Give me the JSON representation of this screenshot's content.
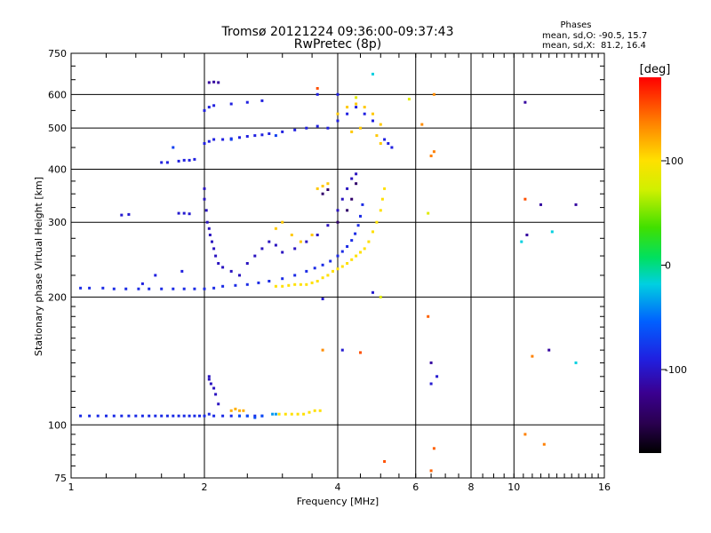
{
  "chart_data": {
    "type": "scatter",
    "title": "Tromsø 20121224 09:36:00-09:37:43",
    "subtitle": "RwPretec (8p)",
    "xlabel": "Frequency [MHz]",
    "ylabel": "Stationary phase Virtual Height [km]",
    "x_scale": "log2",
    "y_scale": "log",
    "xlim": [
      1,
      16
    ],
    "ylim": [
      75,
      750
    ],
    "x_ticks": [
      1,
      2,
      4,
      6,
      8,
      10,
      16
    ],
    "x_tick_labels": [
      "1",
      "2",
      "4",
      "6",
      "8",
      "10",
      "16"
    ],
    "y_ticks": [
      75,
      100,
      200,
      300,
      400,
      500,
      600,
      750
    ],
    "y_tick_labels": [
      "75",
      "100",
      "200",
      "300",
      "400",
      "500",
      "600",
      "750"
    ],
    "grid": true,
    "phases_info": {
      "heading": "Phases",
      "line1": "mean, sd,O: -90.5, 15.7",
      "line2": "mean, sd,X:  81.2, 16.4"
    },
    "colorbar": {
      "label": "[deg]",
      "range": [
        -180,
        180
      ],
      "ticks": [
        100,
        0,
        -100
      ],
      "tick_labels": [
        "100",
        "0",
        "-100"
      ]
    },
    "series": [
      {
        "phase": -95,
        "points": [
          [
            1.05,
            210
          ],
          [
            1.1,
            210
          ],
          [
            1.18,
            210
          ],
          [
            1.25,
            209
          ],
          [
            1.33,
            209
          ],
          [
            1.42,
            209
          ],
          [
            1.5,
            209
          ],
          [
            1.6,
            209
          ],
          [
            1.7,
            209
          ],
          [
            1.8,
            209
          ],
          [
            1.9,
            209
          ],
          [
            2.0,
            209
          ],
          [
            2.1,
            210
          ],
          [
            2.2,
            212
          ],
          [
            2.35,
            213
          ],
          [
            2.5,
            214
          ],
          [
            2.65,
            216
          ],
          [
            2.8,
            218
          ],
          [
            3.0,
            221
          ],
          [
            3.2,
            225
          ],
          [
            3.4,
            230
          ],
          [
            3.55,
            234
          ],
          [
            3.7,
            238
          ],
          [
            3.85,
            243
          ],
          [
            4.0,
            250
          ],
          [
            4.1,
            256
          ],
          [
            4.2,
            263
          ],
          [
            4.3,
            272
          ],
          [
            4.38,
            282
          ],
          [
            4.45,
            295
          ],
          [
            4.5,
            310
          ],
          [
            4.55,
            330
          ]
        ]
      },
      {
        "phase": -95,
        "points": [
          [
            1.05,
            105
          ],
          [
            1.1,
            105
          ],
          [
            1.15,
            105
          ],
          [
            1.2,
            105
          ],
          [
            1.25,
            105
          ],
          [
            1.3,
            105
          ],
          [
            1.35,
            105
          ],
          [
            1.4,
            105
          ],
          [
            1.45,
            105
          ],
          [
            1.5,
            105
          ],
          [
            1.55,
            105
          ],
          [
            1.6,
            105
          ],
          [
            1.65,
            105
          ],
          [
            1.7,
            105
          ],
          [
            1.75,
            105
          ],
          [
            1.8,
            105
          ],
          [
            1.85,
            105
          ],
          [
            1.9,
            105
          ],
          [
            1.95,
            105
          ],
          [
            2.0,
            105
          ],
          [
            2.05,
            106
          ],
          [
            2.1,
            105
          ],
          [
            2.2,
            105
          ],
          [
            2.3,
            105
          ],
          [
            2.4,
            105
          ],
          [
            2.5,
            105
          ],
          [
            2.6,
            105
          ],
          [
            2.7,
            105
          ]
        ]
      },
      {
        "phase": -100,
        "points": [
          [
            2.0,
            460
          ],
          [
            2.05,
            465
          ],
          [
            2.1,
            470
          ],
          [
            2.2,
            470
          ],
          [
            2.3,
            472
          ],
          [
            2.4,
            475
          ],
          [
            2.5,
            478
          ],
          [
            2.6,
            480
          ],
          [
            2.7,
            482
          ],
          [
            2.8,
            485
          ],
          [
            3.0,
            490
          ],
          [
            3.2,
            495
          ],
          [
            3.4,
            500
          ],
          [
            3.6,
            505
          ],
          [
            3.8,
            500
          ],
          [
            4.0,
            520
          ],
          [
            4.2,
            540
          ],
          [
            4.4,
            560
          ],
          [
            4.6,
            540
          ],
          [
            4.8,
            520
          ]
        ]
      },
      {
        "phase": -100,
        "points": [
          [
            2.0,
            550
          ],
          [
            2.05,
            560
          ],
          [
            2.1,
            565
          ],
          [
            2.3,
            570
          ],
          [
            2.5,
            575
          ],
          [
            2.7,
            580
          ],
          [
            3.6,
            600
          ],
          [
            4.0,
            600
          ]
        ]
      },
      {
        "phase": -110,
        "points": [
          [
            2.0,
            360
          ],
          [
            2.0,
            340
          ],
          [
            2.02,
            320
          ],
          [
            2.03,
            300
          ],
          [
            2.05,
            290
          ],
          [
            2.06,
            280
          ],
          [
            2.08,
            270
          ],
          [
            2.1,
            260
          ],
          [
            2.12,
            250
          ],
          [
            2.15,
            240
          ],
          [
            2.2,
            235
          ],
          [
            2.3,
            230
          ],
          [
            2.4,
            225
          ],
          [
            2.5,
            240
          ],
          [
            2.6,
            250
          ],
          [
            2.7,
            260
          ],
          [
            2.8,
            270
          ],
          [
            2.9,
            265
          ],
          [
            3.0,
            255
          ],
          [
            3.2,
            260
          ],
          [
            3.4,
            270
          ],
          [
            3.6,
            280
          ],
          [
            3.8,
            295
          ],
          [
            4.0,
            320
          ],
          [
            4.1,
            340
          ],
          [
            4.2,
            360
          ],
          [
            4.3,
            380
          ],
          [
            4.4,
            390
          ]
        ]
      },
      {
        "phase": -110,
        "points": [
          [
            2.05,
            130
          ],
          [
            2.07,
            125
          ],
          [
            2.1,
            122
          ],
          [
            2.12,
            118
          ],
          [
            2.15,
            112
          ],
          [
            2.05,
            128
          ]
        ]
      },
      {
        "phase": -120,
        "points": [
          [
            2.05,
            640
          ],
          [
            2.1,
            642
          ],
          [
            2.15,
            640
          ]
        ]
      },
      {
        "phase": -105,
        "points": [
          [
            1.3,
            312
          ],
          [
            1.35,
            313
          ],
          [
            1.75,
            315
          ],
          [
            1.8,
            315
          ],
          [
            1.85,
            314
          ]
        ]
      },
      {
        "phase": -100,
        "points": [
          [
            1.6,
            415
          ],
          [
            1.65,
            415
          ],
          [
            1.75,
            418
          ],
          [
            1.8,
            420
          ],
          [
            1.85,
            420
          ],
          [
            1.9,
            422
          ]
        ]
      },
      {
        "phase": -100,
        "points": [
          [
            1.78,
            230
          ],
          [
            1.55,
            225
          ],
          [
            1.45,
            215
          ]
        ]
      },
      {
        "phase": -85,
        "points": [
          [
            1.7,
            450
          ],
          [
            2.3,
            470
          ],
          [
            2.9,
            480
          ]
        ]
      },
      {
        "phase": -100,
        "points": [
          [
            5.1,
            470
          ],
          [
            5.2,
            460
          ],
          [
            5.3,
            450
          ]
        ]
      },
      {
        "phase": -80,
        "points": [
          [
            2.4,
            105
          ],
          [
            2.5,
            105
          ],
          [
            2.6,
            104
          ],
          [
            2.7,
            105
          ]
        ]
      },
      {
        "phase": -45,
        "points": [
          [
            2.85,
            106
          ],
          [
            2.9,
            106
          ]
        ]
      },
      {
        "phase": 100,
        "points": [
          [
            2.95,
            106
          ],
          [
            3.05,
            106
          ],
          [
            3.15,
            106
          ],
          [
            3.25,
            106
          ],
          [
            3.35,
            106
          ],
          [
            3.45,
            107
          ],
          [
            3.55,
            108
          ],
          [
            3.65,
            108
          ]
        ]
      },
      {
        "phase": 120,
        "points": [
          [
            2.3,
            108
          ],
          [
            2.35,
            109
          ],
          [
            2.4,
            108
          ],
          [
            2.45,
            108
          ]
        ]
      },
      {
        "phase": 100,
        "points": [
          [
            2.9,
            212
          ],
          [
            3.0,
            212
          ],
          [
            3.1,
            213
          ],
          [
            3.2,
            214
          ],
          [
            3.3,
            214
          ],
          [
            3.4,
            214
          ],
          [
            3.5,
            216
          ],
          [
            3.6,
            218
          ],
          [
            3.7,
            222
          ],
          [
            3.8,
            225
          ],
          [
            3.9,
            230
          ],
          [
            4.0,
            233
          ],
          [
            4.1,
            236
          ],
          [
            4.2,
            240
          ],
          [
            4.3,
            245
          ],
          [
            4.4,
            250
          ],
          [
            4.5,
            255
          ],
          [
            4.6,
            260
          ],
          [
            4.7,
            270
          ],
          [
            4.8,
            285
          ],
          [
            4.9,
            300
          ],
          [
            5.0,
            320
          ],
          [
            5.05,
            340
          ],
          [
            5.1,
            360
          ]
        ]
      },
      {
        "phase": 110,
        "points": [
          [
            2.9,
            290
          ],
          [
            3.0,
            300
          ],
          [
            3.15,
            280
          ],
          [
            3.3,
            270
          ],
          [
            3.5,
            280
          ],
          [
            3.6,
            360
          ],
          [
            3.7,
            365
          ],
          [
            3.8,
            370
          ],
          [
            4.0,
            540
          ],
          [
            4.2,
            560
          ],
          [
            4.4,
            570
          ],
          [
            4.6,
            560
          ],
          [
            4.8,
            540
          ],
          [
            5.0,
            510
          ],
          [
            4.5,
            500
          ],
          [
            4.3,
            490
          ],
          [
            4.9,
            480
          ],
          [
            5.0,
            460
          ]
        ]
      },
      {
        "phase": 140,
        "points": [
          [
            6.5,
            430
          ],
          [
            6.6,
            440
          ],
          [
            10.6,
            95
          ],
          [
            11.0,
            145
          ],
          [
            11.7,
            90
          ]
        ]
      },
      {
        "phase": 150,
        "points": [
          [
            6.4,
            180
          ],
          [
            6.6,
            88
          ],
          [
            6.5,
            78
          ]
        ]
      },
      {
        "phase": 155,
        "points": [
          [
            3.6,
            620
          ],
          [
            4.5,
            148
          ],
          [
            5.1,
            82
          ],
          [
            10.6,
            340
          ]
        ]
      },
      {
        "phase": 135,
        "points": [
          [
            3.7,
            150
          ],
          [
            6.2,
            510
          ],
          [
            6.6,
            600
          ]
        ]
      },
      {
        "phase": -120,
        "points": [
          [
            6.5,
            140
          ],
          [
            10.6,
            575
          ],
          [
            11.5,
            330
          ],
          [
            10.7,
            280
          ],
          [
            12.0,
            150
          ],
          [
            13.8,
            330
          ]
        ]
      },
      {
        "phase": -105,
        "points": [
          [
            6.7,
            130
          ],
          [
            6.5,
            125
          ],
          [
            4.1,
            150
          ],
          [
            4.8,
            205
          ],
          [
            3.7,
            198
          ]
        ]
      },
      {
        "phase": -20,
        "points": [
          [
            4.8,
            670
          ],
          [
            12.2,
            285
          ],
          [
            13.8,
            140
          ],
          [
            10.4,
            270
          ]
        ]
      },
      {
        "phase": 80,
        "points": [
          [
            4.4,
            590
          ],
          [
            5.0,
            200
          ],
          [
            6.4,
            315
          ],
          [
            5.8,
            585
          ]
        ]
      },
      {
        "phase": -140,
        "points": [
          [
            3.7,
            350
          ],
          [
            3.8,
            358
          ],
          [
            4.0,
            300
          ],
          [
            4.2,
            320
          ],
          [
            4.3,
            340
          ],
          [
            4.4,
            370
          ]
        ]
      }
    ]
  }
}
